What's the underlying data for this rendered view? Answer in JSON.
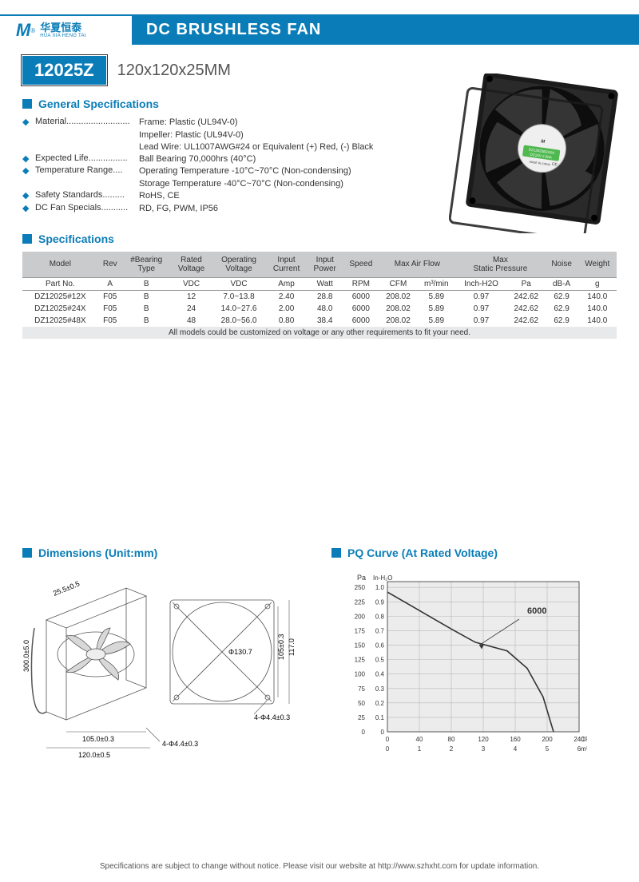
{
  "brand": {
    "logo_letter": "M",
    "name_cn": "华夏恒泰",
    "name_en": "HUA XIA HENG TAI",
    "reg_mark": "®"
  },
  "title": "DC BRUSHLESS FAN",
  "model": {
    "code": "12025Z",
    "dim": "120x120x25MM"
  },
  "colors": {
    "accent": "#0a7db8",
    "th_bg": "#c9cbcd",
    "note_bg": "#e8e9ea",
    "grid": "#b8b8b8"
  },
  "sections": {
    "general": "General Specifications",
    "specs": "Specifications",
    "dims": "Dimensions (Unit:mm)",
    "pq": "PQ Curve (At Rated Voltage)"
  },
  "general": [
    {
      "label": "Material",
      "dots": "..........................",
      "lines": [
        "Frame: Plastic (UL94V-0)",
        "Impeller: Plastic (UL94V-0)",
        "Lead Wire: UL1007AWG#24 or Equivalent (+) Red, (-) Black"
      ]
    },
    {
      "label": "Expected Life",
      "dots": "................",
      "lines": [
        "Ball Bearing 70,000hrs (40°C)"
      ]
    },
    {
      "label": "Temperature Range",
      "dots": "....",
      "lines": [
        "Operating Temperature -10°C~70°C (Non-condensing)",
        "Storage Temperature -40°C~70°C (Non-condensing)"
      ]
    },
    {
      "label": "Safety Standards",
      "dots": ".........",
      "lines": [
        "RoHS, CE"
      ]
    },
    {
      "label": "DC Fan Specials",
      "dots": "...........",
      "lines": [
        "RD, FG, PWM, IP56"
      ]
    }
  ],
  "spec_table": {
    "head1": [
      "Model",
      "Rev",
      "#Bearing Type",
      "Rated Voltage",
      "Operating Voltage",
      "Input Current",
      "Input Power",
      "Speed",
      "Max Air Flow",
      "",
      "Max Static Pressure",
      "",
      "Noise",
      "Weight"
    ],
    "head2": [
      "Part No.",
      "A",
      "B",
      "VDC",
      "VDC",
      "Amp",
      "Watt",
      "RPM",
      "CFM",
      "m³/min",
      "Inch-H2O",
      "Pa",
      "dB-A",
      "g"
    ],
    "rows": [
      [
        "DZ12025#12X",
        "F05",
        "B",
        "12",
        "7.0~13.8",
        "2.40",
        "28.8",
        "6000",
        "208.02",
        "5.89",
        "0.97",
        "242.62",
        "62.9",
        "140.0"
      ],
      [
        "DZ12025#24X",
        "F05",
        "B",
        "24",
        "14.0~27.6",
        "2.00",
        "48.0",
        "6000",
        "208.02",
        "5.89",
        "0.97",
        "242.62",
        "62.9",
        "140.0"
      ],
      [
        "DZ12025#48X",
        "F05",
        "B",
        "48",
        "28.0~56.0",
        "0.80",
        "38.4",
        "6000",
        "208.02",
        "5.89",
        "0.97",
        "242.62",
        "62.9",
        "140.0"
      ]
    ],
    "note": "All models could be customized on voltage or any other requirements to fit your need."
  },
  "dimensions": {
    "depth": "25.5±0.5",
    "wire": "300.0±5.0",
    "diameter": "Φ130.7",
    "pitch_v": "105±0.3",
    "outer_v": "117.0",
    "pitch_h": "105.0±0.3",
    "outer_h": "120.0±0.5",
    "hole1": "4-Φ4.4±0.3",
    "hole2": "4-Φ4.4±0.3"
  },
  "pq": {
    "y_pa_label": "Pa",
    "y_in_label": "In-H₂O",
    "y_pa_ticks": [
      "0",
      "25",
      "50",
      "75",
      "100",
      "125",
      "150",
      "175",
      "200",
      "225",
      "250"
    ],
    "y_in_ticks": [
      "0",
      "0.1",
      "0.2",
      "0.3",
      "0.4",
      "0.5",
      "0.6",
      "0.7",
      "0.8",
      "0.9",
      "1.0"
    ],
    "x_cfm_label": "CFM",
    "x_m3_label": "m³/min",
    "x_cfm_ticks": [
      "0",
      "40",
      "80",
      "120",
      "160",
      "200",
      "240"
    ],
    "x_m3_ticks": [
      "0",
      "1",
      "2",
      "3",
      "4",
      "5",
      "6"
    ],
    "curve_label": "6000",
    "curve": [
      [
        0,
        242
      ],
      [
        40,
        210
      ],
      [
        80,
        178
      ],
      [
        110,
        155
      ],
      [
        150,
        140
      ],
      [
        175,
        110
      ],
      [
        195,
        60
      ],
      [
        208,
        0
      ]
    ],
    "xlim": [
      0,
      240
    ],
    "ylim": [
      0,
      260
    ]
  },
  "footer": "Specifications are subject to change without notice. Please visit our website at http://www.szhxht.com for update information."
}
